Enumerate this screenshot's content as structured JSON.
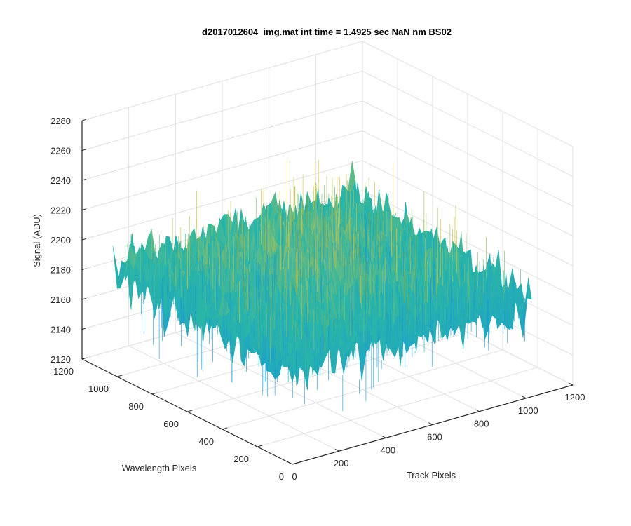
{
  "chart_data": {
    "type": "surface",
    "title": "d2017012604_img.mat int time = 1.4925 sec  NaN nm BS02",
    "xlabel": "Track Pixels",
    "ylabel": "Wavelength Pixels",
    "zlabel": "Signal (ADU)",
    "xlim": [
      0,
      1200
    ],
    "ylim": [
      0,
      1200
    ],
    "zlim": [
      2120,
      2280
    ],
    "xticks": [
      "0",
      "200",
      "400",
      "600",
      "800",
      "1000",
      "1200"
    ],
    "yticks": [
      "0",
      "200",
      "400",
      "600",
      "800",
      "1000",
      "1200"
    ],
    "zticks": [
      "2120",
      "2140",
      "2160",
      "2180",
      "2200",
      "2220",
      "2240",
      "2260",
      "2280"
    ],
    "grid": true,
    "colormap": "parula",
    "surface": {
      "x_range": [
        0,
        1024
      ],
      "y_range": [
        0,
        1024
      ],
      "mean_signal": 2190,
      "noise_amplitude": 18,
      "min_signal": 2140,
      "max_signal": 2265
    },
    "colors": {
      "low": "#1a9ad6",
      "mid": "#2ab6a6",
      "high": "#d9c23a",
      "axis": "#262626",
      "grid": "#e0e0e0"
    }
  }
}
